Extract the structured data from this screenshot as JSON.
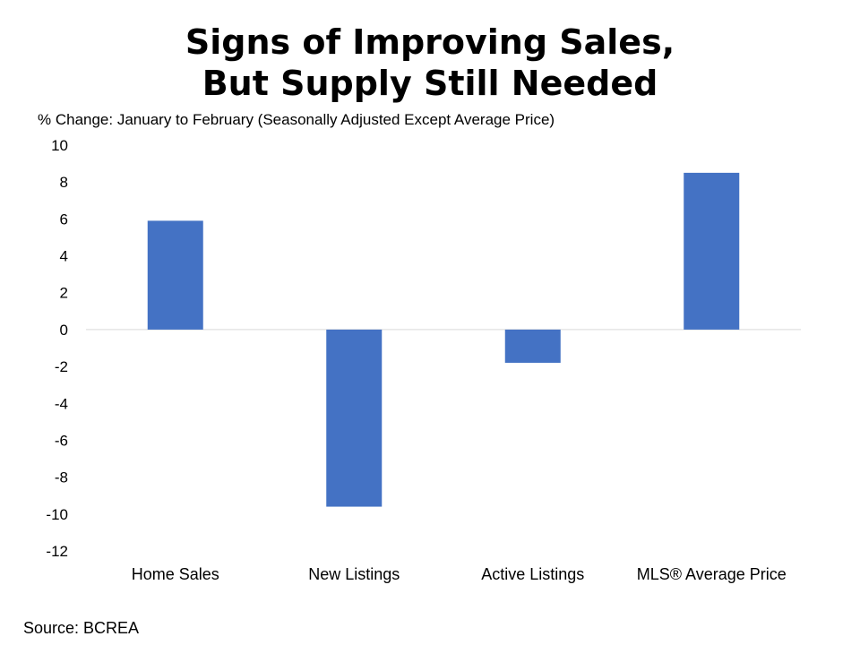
{
  "chart_data": {
    "type": "bar",
    "title_lines": [
      "Signs of Improving Sales,",
      "But Supply Still Needed"
    ],
    "subtitle": "% Change:  January  to  February  (Seasonally Adjusted Except  Average Price)",
    "categories": [
      "Home Sales",
      "New Listings",
      "Active Listings",
      "MLS® Average Price"
    ],
    "values": [
      5.9,
      -9.6,
      -1.8,
      8.5
    ],
    "ylim": [
      -12,
      10
    ],
    "yticks": [
      10,
      8,
      6,
      4,
      2,
      0,
      -2,
      -4,
      -6,
      -8,
      -10,
      -12
    ],
    "grid": false,
    "bar_color": "#4472C4",
    "source": "Source: BCREA"
  }
}
